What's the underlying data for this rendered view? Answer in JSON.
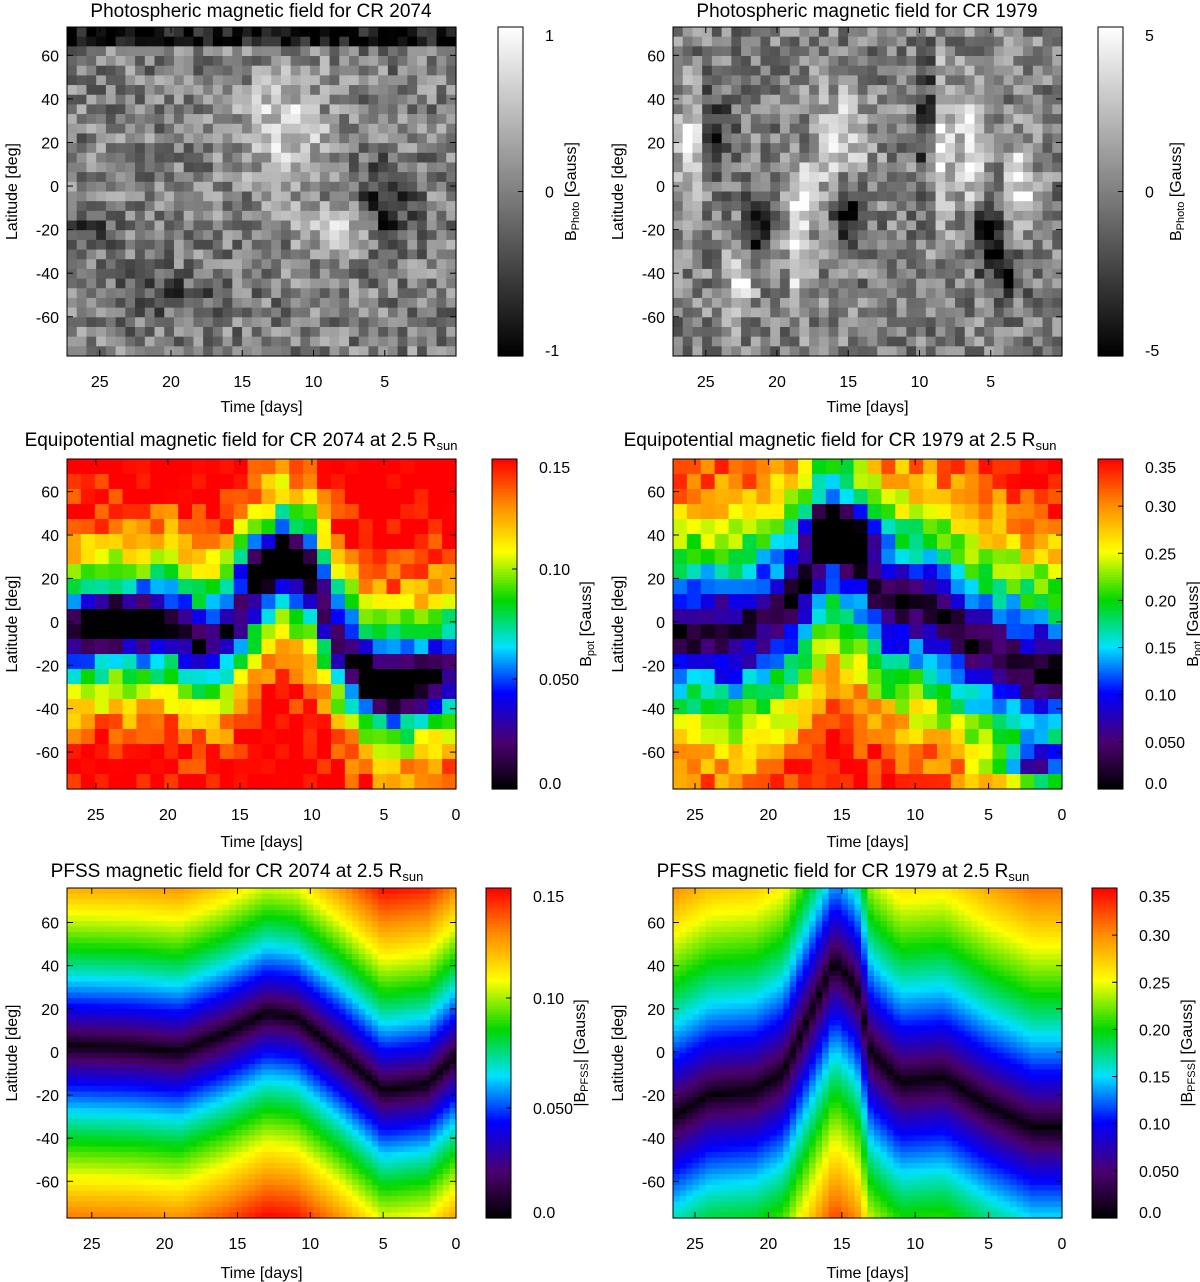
{
  "chart_data": [
    {
      "type": "heatmap",
      "title": "Photospheric magnetic field for CR 2074",
      "title_sub": "",
      "xlabel": "Time [days]",
      "ylabel": "Latitude [deg]",
      "xlim": [
        27.3,
        0
      ],
      "ylim": [
        -78,
        73
      ],
      "xticks": [
        "25",
        "20",
        "15",
        "10",
        "5"
      ],
      "yticks": [
        "60",
        "40",
        "20",
        "0",
        "-20",
        "-40",
        "-60"
      ],
      "colorbar": {
        "label_main": "B",
        "label_sub": "Photo",
        "label_tail": " [Gauss]",
        "colormap": "gray",
        "range": [
          -1,
          1
        ],
        "ticks": [
          "1",
          "0",
          "-1"
        ]
      },
      "features": [
        {
          "x": 12,
          "y": 25,
          "value": 0.7,
          "sx": 2,
          "sy": 18
        },
        {
          "x": 5,
          "y": -10,
          "value": -0.9,
          "sx": 1.3,
          "sy": 12
        },
        {
          "x": 8,
          "y": -20,
          "value": 0.6,
          "sx": 1.8,
          "sy": 8
        },
        {
          "x": 26,
          "y": -20,
          "value": -0.5,
          "sx": 1.2,
          "sy": 8
        },
        {
          "x": 20,
          "y": -50,
          "value": -0.4,
          "sx": 3,
          "sy": 8
        }
      ]
    },
    {
      "type": "heatmap",
      "title": "Photospheric magnetic field for CR 1979",
      "title_sub": "",
      "xlabel": "Time [days]",
      "ylabel": "Latitude [deg]",
      "xlim": [
        27.3,
        0
      ],
      "ylim": [
        -78,
        73
      ],
      "xticks": [
        "25",
        "20",
        "15",
        "10",
        "5"
      ],
      "yticks": [
        "60",
        "40",
        "20",
        "0",
        "-20",
        "-40",
        "-60"
      ],
      "colorbar": {
        "label_main": "B",
        "label_sub": "Photo",
        "label_tail": " [Gauss]",
        "colormap": "gray",
        "range": [
          -5,
          5
        ],
        "ticks": [
          "5",
          "0",
          "-5"
        ]
      },
      "features": [
        {
          "x": 26,
          "y": 20,
          "value": 5,
          "sx": 0.8,
          "sy": 15
        },
        {
          "x": 24.5,
          "y": 25,
          "value": -4,
          "sx": 0.8,
          "sy": 15
        },
        {
          "x": 21.5,
          "y": -25,
          "value": -5,
          "sx": 0.7,
          "sy": 12
        },
        {
          "x": 22.5,
          "y": -40,
          "value": 5,
          "sx": 0.8,
          "sy": 12
        },
        {
          "x": 18,
          "y": 22,
          "value": -5,
          "sx": 1,
          "sy": 10
        },
        {
          "x": 16.5,
          "y": 20,
          "value": 5,
          "sx": 1.8,
          "sy": 15
        },
        {
          "x": 18.5,
          "y": -20,
          "value": 5,
          "sx": 0.6,
          "sy": 22
        },
        {
          "x": 15,
          "y": -10,
          "value": -5,
          "sx": 0.8,
          "sy": 10
        },
        {
          "x": 9.5,
          "y": 30,
          "value": -5,
          "sx": 0.5,
          "sy": 18
        },
        {
          "x": 8.5,
          "y": 20,
          "value": 5,
          "sx": 0.5,
          "sy": 25
        },
        {
          "x": 6.5,
          "y": 20,
          "value": 5,
          "sx": 0.6,
          "sy": 20
        },
        {
          "x": 5,
          "y": -20,
          "value": -5,
          "sx": 0.8,
          "sy": 10
        },
        {
          "x": 3,
          "y": 0,
          "value": 4,
          "sx": 0.8,
          "sy": 15
        },
        {
          "x": 4,
          "y": -40,
          "value": -4,
          "sx": 1,
          "sy": 8
        }
      ]
    },
    {
      "type": "heatmap",
      "title": "Equipotential magnetic field for CR 2074 at 2.5 R",
      "title_sub": "sun",
      "xlabel": "Time [days]",
      "ylabel": "Latitude [deg]",
      "xlim": [
        27,
        0
      ],
      "ylim": [
        -77,
        75
      ],
      "xticks": [
        "25",
        "20",
        "15",
        "10",
        "5",
        "0"
      ],
      "yticks": [
        "60",
        "40",
        "20",
        "0",
        "-20",
        "-40",
        "-60"
      ],
      "colorbar": {
        "label_main": "B",
        "label_sub": "pot",
        "label_tail": " [Gauss]",
        "colormap": "rainbow",
        "range": [
          0,
          0.15
        ],
        "ticks": [
          "0.15",
          "0.10",
          "0.050",
          "0.0"
        ]
      },
      "neutral_line": [
        [
          27,
          -5
        ],
        [
          24,
          -2
        ],
        [
          20,
          0
        ],
        [
          18,
          -10
        ],
        [
          16,
          -5
        ],
        [
          14,
          15
        ],
        [
          12,
          28
        ],
        [
          10,
          20
        ],
        [
          8,
          -10
        ],
        [
          5,
          -30
        ],
        [
          2,
          -25
        ],
        [
          0,
          -20
        ]
      ],
      "field_decay_deg": 40,
      "minima": [
        {
          "x": 12.5,
          "y": 28
        },
        {
          "x": 4.5,
          "y": -32
        },
        {
          "x": 23,
          "y": 0
        }
      ]
    },
    {
      "type": "heatmap",
      "title": "Equipotential magnetic field for CR 1979 at 2.5 R",
      "title_sub": "sun",
      "xlabel": "Time [days]",
      "ylabel": "Latitude [deg]",
      "xlim": [
        26.5,
        0
      ],
      "ylim": [
        -77,
        75
      ],
      "xticks": [
        "25",
        "20",
        "15",
        "10",
        "5",
        "0"
      ],
      "yticks": [
        "60",
        "40",
        "20",
        "0",
        "-20",
        "-40",
        "-60"
      ],
      "colorbar": {
        "label_main": "B",
        "label_sub": "pot",
        "label_tail": " [Gauss]",
        "colormap": "rainbow",
        "range": [
          0,
          0.35
        ],
        "ticks": [
          "0.35",
          "0.30",
          "0.25",
          "0.20",
          "0.15",
          "0.10",
          "0.050",
          "0.0"
        ]
      },
      "neutral_line": [
        [
          26.5,
          -5
        ],
        [
          22,
          -5
        ],
        [
          18,
          10
        ],
        [
          16,
          40
        ],
        [
          14,
          30
        ],
        [
          12,
          10
        ],
        [
          9,
          5
        ],
        [
          6,
          -10
        ],
        [
          3,
          -20
        ],
        [
          0,
          -25
        ]
      ],
      "field_decay_deg": 60,
      "minima": [
        {
          "x": 15.5,
          "y": 42
        },
        {
          "x": 2,
          "y": -65
        }
      ]
    },
    {
      "type": "heatmap",
      "title": "PFSS magnetic field for CR 2074 at 2.5 R",
      "title_sub": "sun",
      "xlabel": "Time [days]",
      "ylabel": "Latitude [deg]",
      "xlim": [
        26.7,
        0
      ],
      "ylim": [
        -77,
        76
      ],
      "xticks": [
        "25",
        "20",
        "15",
        "10",
        "5",
        "0"
      ],
      "yticks": [
        "60",
        "40",
        "20",
        "0",
        "-20",
        "-40",
        "-60"
      ],
      "colorbar": {
        "label_main": "|B",
        "label_sub": "PFSS",
        "label_tail": "| [Gauss]",
        "colormap": "rainbow",
        "range": [
          0,
          0.15
        ],
        "ticks": [
          "0.15",
          "0.10",
          "0.050",
          "0.0"
        ]
      },
      "neutral_line": [
        [
          26.7,
          3
        ],
        [
          22,
          2
        ],
        [
          19,
          0
        ],
        [
          16,
          8
        ],
        [
          13,
          18
        ],
        [
          11,
          16
        ],
        [
          8,
          0
        ],
        [
          5,
          -18
        ],
        [
          2,
          -15
        ],
        [
          0,
          -2
        ]
      ],
      "field_decay_deg": 95
    },
    {
      "type": "heatmap",
      "title": "PFSS magnetic field for CR 1979 at 2.5 R",
      "title_sub": "sun",
      "xlabel": "Time [days]",
      "ylabel": "Latitude [deg]",
      "xlim": [
        26.5,
        0
      ],
      "ylim": [
        -77,
        76
      ],
      "xticks": [
        "25",
        "20",
        "15",
        "10",
        "5",
        "0"
      ],
      "yticks": [
        "60",
        "40",
        "20",
        "0",
        "-20",
        "-40",
        "-60"
      ],
      "colorbar": {
        "label_main": "|B",
        "label_sub": "PFSS",
        "label_tail": "| [Gauss]",
        "colormap": "rainbow",
        "range": [
          0,
          0.35
        ],
        "ticks": [
          "0.35",
          "0.30",
          "0.25",
          "0.20",
          "0.15",
          "0.10",
          "0.050",
          "0.0"
        ]
      },
      "neutral_line": [
        [
          26.5,
          -30
        ],
        [
          24,
          -20
        ],
        [
          21,
          -18
        ],
        [
          19,
          -10
        ],
        [
          17,
          20
        ],
        [
          15.5,
          42
        ],
        [
          14,
          30
        ],
        [
          13,
          0
        ],
        [
          11,
          -14
        ],
        [
          8,
          -12
        ],
        [
          5,
          -25
        ],
        [
          2,
          -35
        ],
        [
          0,
          -35
        ]
      ],
      "field_decay_deg": 130
    }
  ]
}
